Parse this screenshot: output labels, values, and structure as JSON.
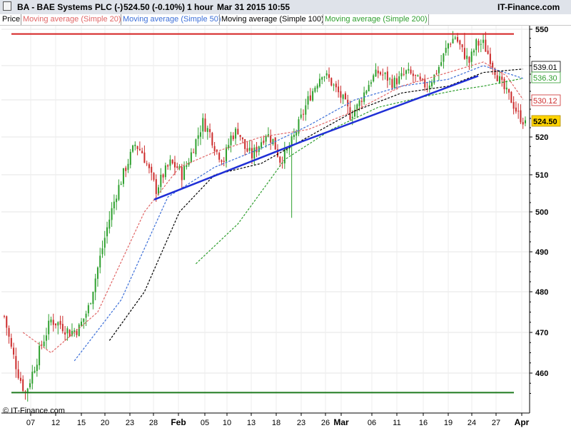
{
  "header": {
    "instrument": "BA - BAE Systems PLC (-)",
    "last_change": "524.50 (-0.10%)",
    "interval": "1 hour",
    "datetime": "Mar 31 2015 10:55",
    "brand": "IT-Finance.com"
  },
  "legend": [
    {
      "label": "Price",
      "color": "#000000"
    },
    {
      "label": "Moving average (Simple 20)",
      "color": "#e06666"
    },
    {
      "label": "Moving average (Simple 50)",
      "color": "#3c6fd8"
    },
    {
      "label": "Moving average (Simple 100)",
      "color": "#000000"
    },
    {
      "label": "Moving average (Simple 200)",
      "color": "#2e9e2e"
    }
  ],
  "copyright": "© IT-Finance.com",
  "colors": {
    "up": "#2ea02e",
    "down": "#cc2b2b",
    "trend": "#1f2fd6",
    "resistance": "#d42020",
    "support": "#1f7a1f"
  },
  "chart_data": {
    "type": "candlestick",
    "ylim": [
      453,
      554
    ],
    "y_ticks": [
      460,
      470,
      480,
      490,
      500,
      510,
      520,
      530,
      540,
      550
    ],
    "x_ticks": [
      "07",
      "12",
      "15",
      "20",
      "23",
      "28",
      "Feb",
      "05",
      "10",
      "13",
      "18",
      "23",
      "26",
      "Mar",
      "06",
      "11",
      "16",
      "19",
      "24",
      "27",
      "Apr"
    ],
    "grid": true,
    "price_tags": [
      {
        "label": "539.01",
        "value": 539.01,
        "series": "Moving average (Simple 100)"
      },
      {
        "label": "536.30",
        "value": 536.3,
        "series": "Moving average (Simple 200)"
      },
      {
        "label": "530.12",
        "value": 530.12,
        "series": "Moving average (Simple 20)"
      },
      {
        "label": "524.50",
        "value": 524.5,
        "series": "Price"
      }
    ],
    "horizontal_lines": [
      {
        "name": "resistance",
        "value": 548.7
      },
      {
        "name": "support",
        "value": 455.2
      }
    ],
    "trendlines": [
      {
        "name": "lower-trendline",
        "from": {
          "x": "Jan 28",
          "y": 503.3
        },
        "to": {
          "x": "Feb 20",
          "y": 518.0
        },
        "note": ""
      },
      {
        "name": "channel-trendline",
        "points": [
          {
            "x": "Jan 28",
            "y": 503.3
          },
          {
            "x": "Mar 24",
            "y": 537.0
          }
        ]
      }
    ],
    "price_path": [
      [
        0,
        474
      ],
      [
        3,
        466
      ],
      [
        6,
        460
      ],
      [
        9,
        455
      ],
      [
        12,
        460
      ],
      [
        16,
        467
      ],
      [
        20,
        473
      ],
      [
        24,
        472
      ],
      [
        28,
        470
      ],
      [
        32,
        471
      ],
      [
        36,
        476
      ],
      [
        40,
        486
      ],
      [
        44,
        496
      ],
      [
        48,
        505
      ],
      [
        52,
        512
      ],
      [
        56,
        518
      ],
      [
        59,
        516
      ],
      [
        62,
        511
      ],
      [
        65,
        506
      ],
      [
        68,
        510
      ],
      [
        71,
        513
      ],
      [
        74,
        512
      ],
      [
        76,
        510
      ],
      [
        79,
        514
      ],
      [
        82,
        519
      ],
      [
        85,
        524
      ],
      [
        88,
        521
      ],
      [
        91,
        516
      ],
      [
        94,
        514
      ],
      [
        97,
        520
      ],
      [
        100,
        522
      ],
      [
        103,
        517
      ],
      [
        106,
        515
      ],
      [
        109,
        518
      ],
      [
        112,
        521
      ],
      [
        115,
        519
      ],
      [
        118,
        514
      ],
      [
        121,
        516
      ],
      [
        124,
        520
      ],
      [
        127,
        525
      ],
      [
        130,
        530
      ],
      [
        133,
        534
      ],
      [
        136,
        538
      ],
      [
        139,
        536
      ],
      [
        142,
        533
      ],
      [
        145,
        530
      ],
      [
        148,
        526
      ],
      [
        151,
        528
      ],
      [
        154,
        532
      ],
      [
        157,
        536
      ],
      [
        160,
        538
      ],
      [
        163,
        537
      ],
      [
        166,
        535
      ],
      [
        169,
        536
      ],
      [
        172,
        538
      ],
      [
        175,
        537
      ],
      [
        178,
        535
      ],
      [
        181,
        534
      ],
      [
        184,
        537
      ],
      [
        187,
        541
      ],
      [
        190,
        546
      ],
      [
        193,
        548
      ],
      [
        196,
        544
      ],
      [
        199,
        541
      ],
      [
        202,
        546
      ],
      [
        205,
        546
      ],
      [
        208,
        542
      ],
      [
        211,
        537
      ],
      [
        214,
        533
      ],
      [
        217,
        530
      ],
      [
        220,
        526
      ],
      [
        222,
        524.5
      ]
    ],
    "series": [
      {
        "name": "Moving average (Simple 20)",
        "values": [
          [
            8,
            470
          ],
          [
            20,
            465
          ],
          [
            40,
            475
          ],
          [
            60,
            500
          ],
          [
            75,
            512
          ],
          [
            90,
            516
          ],
          [
            110,
            520
          ],
          [
            130,
            522
          ],
          [
            150,
            527
          ],
          [
            170,
            534
          ],
          [
            190,
            538
          ],
          [
            205,
            541
          ],
          [
            215,
            537
          ],
          [
            222,
            530.12
          ]
        ]
      },
      {
        "name": "Moving average (Simple 50)",
        "values": [
          [
            30,
            463
          ],
          [
            50,
            478
          ],
          [
            70,
            504
          ],
          [
            90,
            512
          ],
          [
            110,
            517
          ],
          [
            130,
            523
          ],
          [
            150,
            530
          ],
          [
            170,
            534
          ],
          [
            190,
            536
          ],
          [
            205,
            540
          ],
          [
            222,
            536.3
          ]
        ]
      },
      {
        "name": "Moving average (Simple 100)",
        "values": [
          [
            45,
            468
          ],
          [
            60,
            480
          ],
          [
            75,
            500
          ],
          [
            90,
            510
          ],
          [
            110,
            513
          ],
          [
            130,
            520
          ],
          [
            150,
            527
          ],
          [
            170,
            532
          ],
          [
            190,
            534
          ],
          [
            205,
            538
          ],
          [
            222,
            539.01
          ]
        ]
      },
      {
        "name": "Moving average (Simple 200)",
        "values": [
          [
            82,
            487
          ],
          [
            100,
            497
          ],
          [
            120,
            514
          ],
          [
            140,
            522
          ],
          [
            160,
            528
          ],
          [
            180,
            531
          ],
          [
            195,
            533
          ],
          [
            205,
            534
          ],
          [
            222,
            536.3
          ]
        ]
      }
    ]
  }
}
